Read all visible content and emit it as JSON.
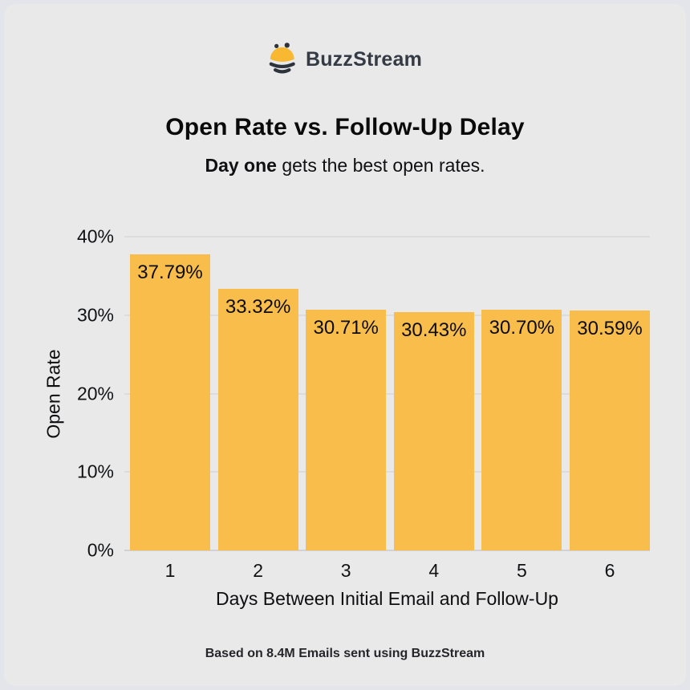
{
  "page": {
    "background_color": "#e9e9ea",
    "frame_color": "#e4e5ea"
  },
  "logo": {
    "brand": "BuzzStream",
    "icon": "bee-icon",
    "text_color": "#343b44",
    "icon_yellow": "#f9b831",
    "icon_dark": "#2e333b"
  },
  "header": {
    "title": "Open Rate vs. Follow-Up Delay",
    "subtitle_bold": "Day one",
    "subtitle_rest": " gets the best open rates."
  },
  "chart_data": {
    "type": "bar",
    "title": "Open Rate vs. Follow-Up Delay",
    "xlabel": "Days Between Initial Email and Follow-Up",
    "ylabel": "Open Rate",
    "categories": [
      "1",
      "2",
      "3",
      "4",
      "5",
      "6"
    ],
    "values": [
      37.79,
      33.32,
      30.71,
      30.43,
      30.7,
      30.59
    ],
    "value_labels": [
      "37.79%",
      "33.32%",
      "30.71%",
      "30.43%",
      "30.70%",
      "30.59%"
    ],
    "ylim": [
      0,
      40
    ],
    "yticks": [
      0,
      10,
      20,
      30,
      40
    ],
    "ytick_labels": [
      "0%",
      "10%",
      "20%",
      "30%",
      "40%"
    ],
    "bar_color": "#f8bd4a",
    "gridline_color": "#dcdcde",
    "grid": true,
    "legend": "none"
  },
  "footer": {
    "note": "Based on 8.4M Emails sent using BuzzStream"
  }
}
